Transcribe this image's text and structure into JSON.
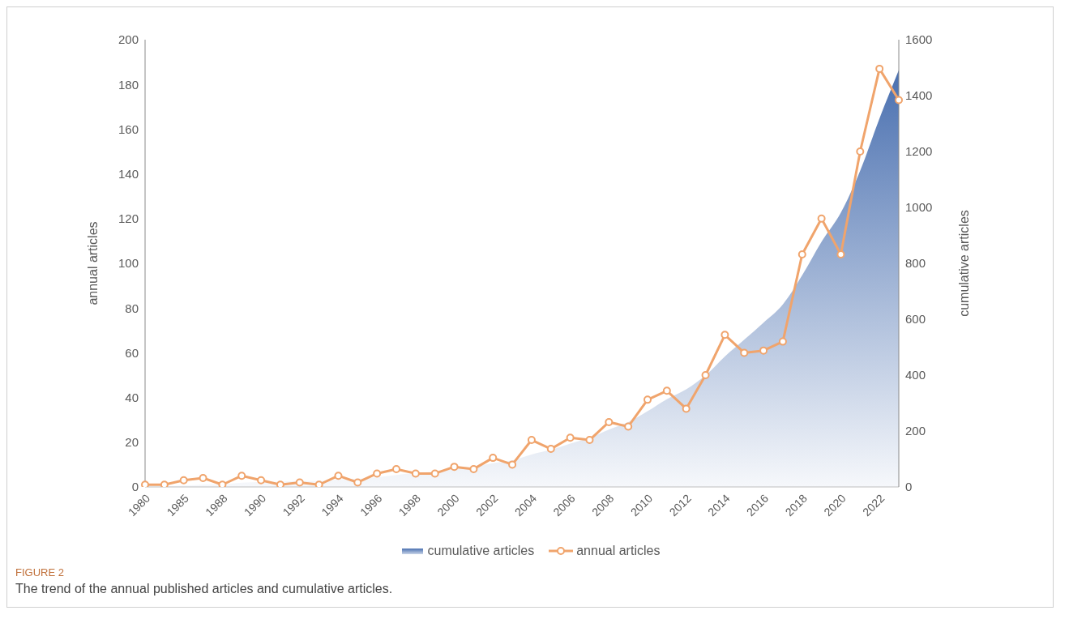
{
  "chart_data": {
    "type": "line",
    "categories": [
      "1980",
      null,
      "1985",
      null,
      "1988",
      null,
      "1990",
      null,
      "1992",
      null,
      "1994",
      null,
      "1996",
      null,
      "1998",
      null,
      "2000",
      null,
      "2002",
      null,
      "2004",
      null,
      "2006",
      null,
      "2008",
      null,
      "2010",
      null,
      "2012",
      null,
      "2014",
      null,
      "2016",
      null,
      "2018",
      null,
      "2020",
      null,
      "2022",
      null
    ],
    "series": [
      {
        "name": "cumulative articles",
        "type": "area",
        "axis": "y2",
        "color": "#4a70b0",
        "values": [
          1,
          2,
          5,
          9,
          10,
          15,
          18,
          19,
          21,
          22,
          27,
          29,
          35,
          43,
          49,
          55,
          64,
          72,
          85,
          95,
          116,
          133,
          155,
          176,
          205,
          232,
          271,
          314,
          349,
          399,
          467,
          527,
          588,
          653,
          757,
          877,
          981,
          1131,
          1318,
          1491
        ]
      },
      {
        "name": "annual articles",
        "color": "#f0a46c",
        "marker": "circle",
        "values": [
          1,
          1,
          3,
          4,
          1,
          5,
          3,
          1,
          2,
          1,
          5,
          2,
          6,
          8,
          6,
          6,
          9,
          8,
          13,
          10,
          21,
          17,
          22,
          21,
          29,
          27,
          39,
          43,
          35,
          50,
          68,
          60,
          61,
          65,
          104,
          120,
          104,
          150,
          187,
          173
        ]
      }
    ],
    "ylabel": "annual articles",
    "y2label": "cumulative articles",
    "ylim": [
      0,
      200
    ],
    "yticks": [
      0,
      20,
      40,
      60,
      80,
      100,
      120,
      140,
      160,
      180,
      200
    ],
    "y2lim": [
      0,
      1600
    ],
    "y2ticks": [
      0,
      200,
      400,
      600,
      800,
      1000,
      1200,
      1400,
      1600
    ],
    "legend": "bottom",
    "grid": false,
    "annotations": [
      "FIGURE 2",
      "The trend of the annual published articles and cumulative articles."
    ]
  }
}
